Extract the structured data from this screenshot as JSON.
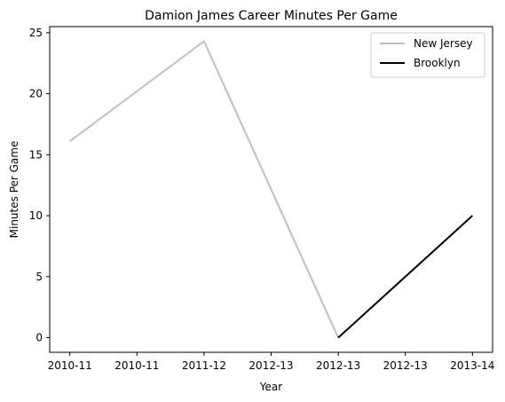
{
  "chart_data": {
    "type": "line",
    "title": "Damion James Career Minutes Per Game",
    "xlabel": "Year",
    "ylabel": "Minutes Per Game",
    "x_tick_labels": [
      "2010-11",
      "2010-11",
      "2011-12",
      "2012-13",
      "2012-13",
      "2012-13",
      "2013-14"
    ],
    "y_ticks": [
      0,
      5,
      10,
      15,
      20,
      25
    ],
    "ylim": [
      -1.2,
      25.5
    ],
    "xlim": [
      -0.3,
      6.3
    ],
    "legend_position": "top-right",
    "series": [
      {
        "name": "New Jersey",
        "color": "#bfbfbf",
        "x": [
          0,
          2,
          4
        ],
        "x_labels": [
          "2010-11",
          "2011-12",
          "2012-13"
        ],
        "values": [
          16.1,
          24.3,
          0
        ]
      },
      {
        "name": "Brooklyn",
        "color": "#000000",
        "x": [
          4,
          6
        ],
        "x_labels": [
          "2012-13",
          "2013-14"
        ],
        "values": [
          0,
          10
        ]
      }
    ],
    "grid": false
  }
}
